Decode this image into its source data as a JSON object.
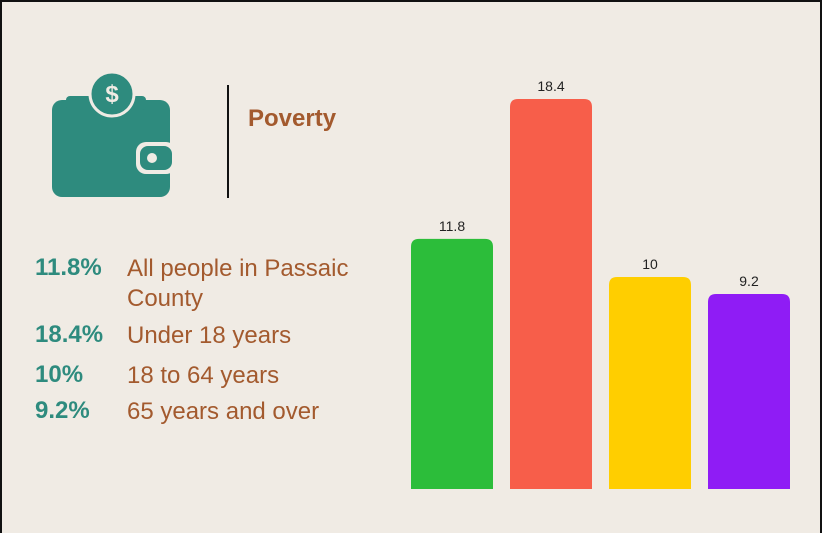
{
  "header": {
    "title": "Poverty"
  },
  "stats": [
    {
      "value": "11.8%",
      "label": "All people in Passaic County"
    },
    {
      "value": "18.4%",
      "label": "Under 18 years"
    },
    {
      "value": "10%",
      "label": "18 to 64 years"
    },
    {
      "value": "9.2%",
      "label": "65 years and over"
    }
  ],
  "chart_data": {
    "type": "bar",
    "values": [
      11.8,
      18.4,
      10,
      9.2
    ],
    "colors": [
      "#2cbd3a",
      "#f75e4a",
      "#ffce00",
      "#8f1cf5"
    ]
  }
}
